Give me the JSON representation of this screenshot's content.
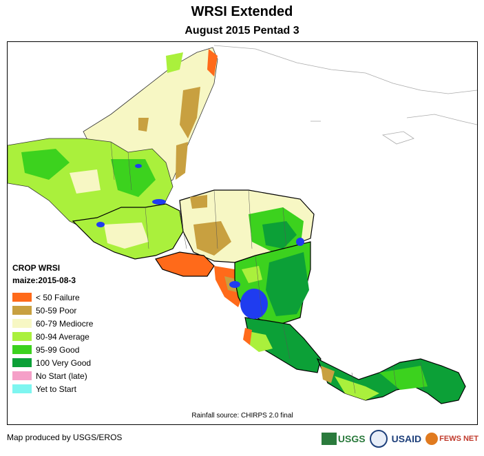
{
  "title": "WRSI Extended",
  "subtitle": "August 2015 Pentad 3",
  "legend": {
    "title": "CROP WRSI",
    "subtitle": "maize:2015-08-3",
    "items": [
      {
        "label": "< 50  Failure",
        "color": "#ff6a1a"
      },
      {
        "label": "50-59 Poor",
        "color": "#c8a040"
      },
      {
        "label": "60-79 Mediocre",
        "color": "#f7f7c4"
      },
      {
        "label": "80-94 Average",
        "color": "#aaf03c"
      },
      {
        "label": "95-99 Good",
        "color": "#3cd21e"
      },
      {
        "label": "100 Very Good",
        "color": "#0ca037"
      },
      {
        "label": "No Start (late)",
        "color": "#f5a0c8"
      },
      {
        "label": "Yet to Start",
        "color": "#7ef5f0"
      }
    ]
  },
  "rainfall_source": "Rainfall source: CHIRPS 2.0 final",
  "credit": "Map produced by USGS/EROS",
  "logos": {
    "usgs": "USGS",
    "usaid": "USAID",
    "fews": "FEWS NET"
  },
  "colors": {
    "water": "#1f3cf0",
    "border": "#000000",
    "admin": "#555555"
  }
}
